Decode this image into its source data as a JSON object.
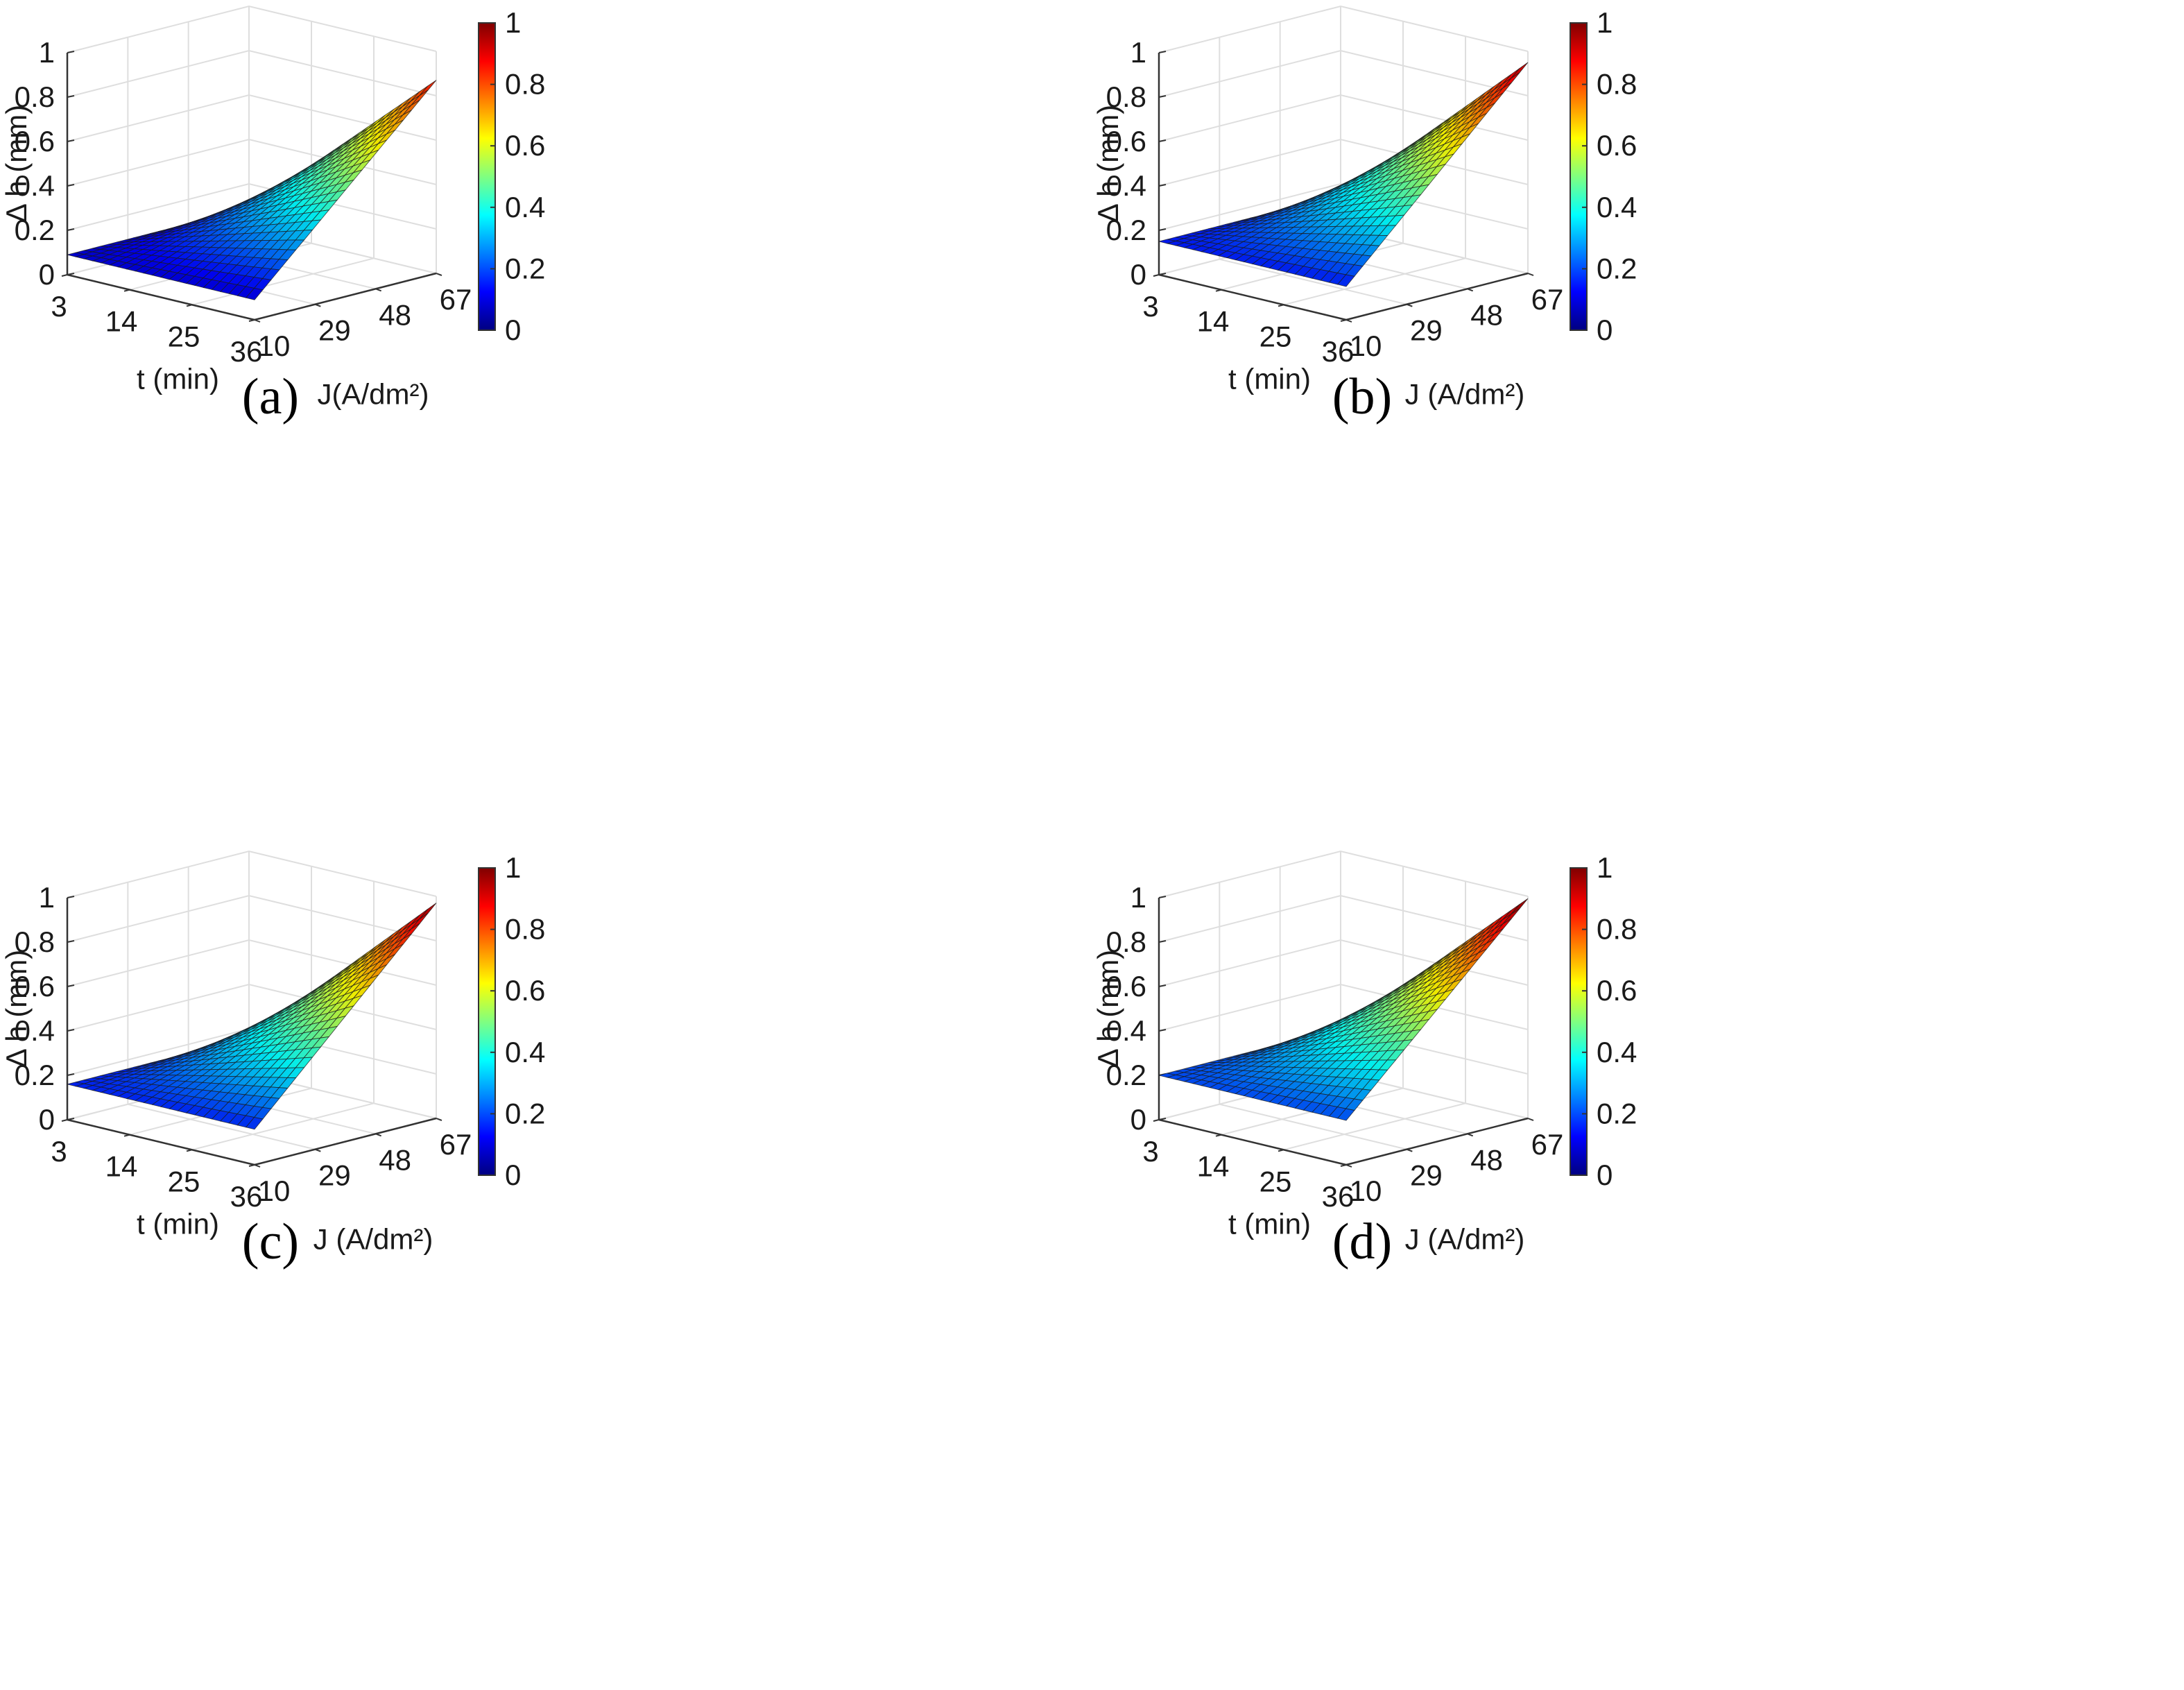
{
  "figure": {
    "panels": [
      {
        "id": "a",
        "label": "(a)"
      },
      {
        "id": "b",
        "label": "(b)"
      },
      {
        "id": "c",
        "label": "(c)"
      },
      {
        "id": "d",
        "label": "(d)"
      }
    ],
    "colormap": "jet"
  },
  "chart_data": [
    {
      "type": "surface3d",
      "panel": "(a)",
      "zlabel": "Δ h (mm)",
      "xlabel": "t (min)",
      "ylabel": "J(A/dm²)",
      "x_ticks": [
        "3",
        "14",
        "25",
        "36"
      ],
      "y_ticks": [
        "10",
        "29",
        "48",
        "67"
      ],
      "z_ticks": [
        "0",
        "0.2",
        "0.4",
        "0.6",
        "0.8",
        "1"
      ],
      "colorbar_ticks": [
        "0",
        "0.2",
        "0.4",
        "0.6",
        "0.8",
        "1"
      ],
      "xlim": [
        3,
        36
      ],
      "ylim": [
        10,
        67
      ],
      "zlim": [
        0,
        1
      ],
      "clim": [
        0,
        1
      ],
      "corners": {
        "t3_J10": 0.09,
        "t36_J10": 0.09,
        "t3_J67": 0.09,
        "t36_J67": 0.87
      },
      "curvature": 0.11
    },
    {
      "type": "surface3d",
      "panel": "(b)",
      "zlabel": "Δ h (mm)",
      "xlabel": "t (min)",
      "ylabel": "J (A/dm²)",
      "x_ticks": [
        "3",
        "14",
        "25",
        "36"
      ],
      "y_ticks": [
        "10",
        "29",
        "48",
        "67"
      ],
      "z_ticks": [
        "0",
        "0.2",
        "0.4",
        "0.6",
        "0.8",
        "1"
      ],
      "colorbar_ticks": [
        "0",
        "0.2",
        "0.4",
        "0.6",
        "0.8",
        "1"
      ],
      "xlim": [
        3,
        36
      ],
      "ylim": [
        10,
        67
      ],
      "zlim": [
        0,
        1
      ],
      "clim": [
        0,
        1
      ],
      "corners": {
        "t3_J10": 0.15,
        "t36_J10": 0.15,
        "t3_J67": 0.15,
        "t36_J67": 0.95
      },
      "curvature": 0.11
    },
    {
      "type": "surface3d",
      "panel": "(c)",
      "zlabel": "Δ h (mm)",
      "xlabel": "t (min)",
      "ylabel": "J (A/dm²)",
      "x_ticks": [
        "3",
        "14",
        "25",
        "36"
      ],
      "y_ticks": [
        "10",
        "29",
        "48",
        "67"
      ],
      "z_ticks": [
        "0",
        "0.2",
        "0.4",
        "0.6",
        "0.8",
        "1"
      ],
      "colorbar_ticks": [
        "0",
        "0.2",
        "0.4",
        "0.6",
        "0.8",
        "1"
      ],
      "xlim": [
        3,
        36
      ],
      "ylim": [
        10,
        67
      ],
      "zlim": [
        0,
        1
      ],
      "clim": [
        0,
        1
      ],
      "corners": {
        "t3_J10": 0.16,
        "t36_J10": 0.16,
        "t3_J67": 0.16,
        "t36_J67": 0.97
      },
      "curvature": 0.11
    },
    {
      "type": "surface3d",
      "panel": "(d)",
      "zlabel": "Δ h (mm)",
      "xlabel": "t (min)",
      "ylabel": "J (A/dm²)",
      "x_ticks": [
        "3",
        "14",
        "25",
        "36"
      ],
      "y_ticks": [
        "10",
        "29",
        "48",
        "67"
      ],
      "z_ticks": [
        "0",
        "0.2",
        "0.4",
        "0.6",
        "0.8",
        "1"
      ],
      "colorbar_ticks": [
        "0",
        "0.2",
        "0.4",
        "0.6",
        "0.8",
        "1"
      ],
      "xlim": [
        3,
        36
      ],
      "ylim": [
        10,
        67
      ],
      "zlim": [
        0,
        1
      ],
      "clim": [
        0,
        1
      ],
      "corners": {
        "t3_J10": 0.2,
        "t36_J10": 0.2,
        "t3_J67": 0.2,
        "t36_J67": 0.99
      },
      "curvature": 0.11
    }
  ]
}
